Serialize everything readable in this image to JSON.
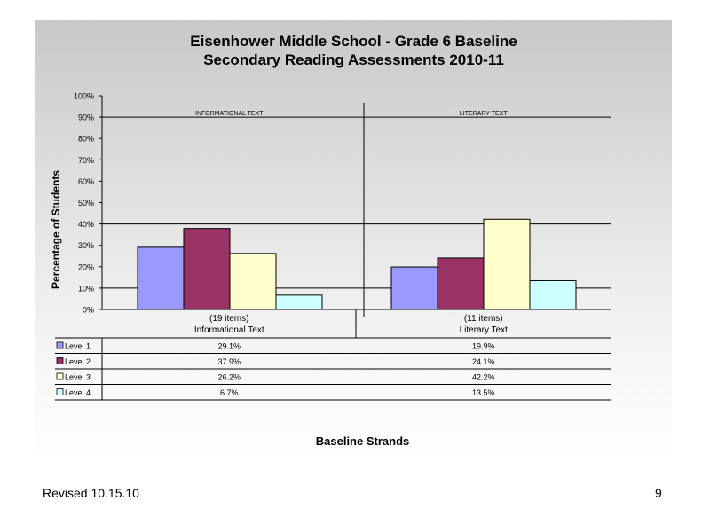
{
  "chart_data": {
    "type": "bar",
    "title": "Eisenhower Middle School  - Grade 6 Baseline",
    "subtitle": "Secondary Reading Assessments 2010-11",
    "xlabel": "Baseline Strands",
    "ylabel": "Percentage of Students",
    "ylim": [
      0,
      100
    ],
    "yticks": [
      "0%",
      "10%",
      "20%",
      "30%",
      "40%",
      "50%",
      "60%",
      "70%",
      "80%",
      "90%",
      "100%"
    ],
    "grid": "horizontal at 10%, 40%, 90%",
    "legend_placement": "data table left",
    "categories": [
      {
        "items": "(19 items)",
        "name": "Informational Text",
        "header": "INFORMATIONAL TEXT"
      },
      {
        "items": "(11 items)",
        "name": "Literary Text",
        "header": "LITERARY TEXT"
      }
    ],
    "series": [
      {
        "name": "Level 1",
        "color": "#9999ff",
        "values": [
          29.1,
          19.9
        ],
        "labels": [
          "29.1%",
          "19.9%"
        ]
      },
      {
        "name": "Level 2",
        "color": "#993366",
        "values": [
          37.9,
          24.1
        ],
        "labels": [
          "37.9%",
          "24.1%"
        ]
      },
      {
        "name": "Level 3",
        "color": "#ffffcc",
        "values": [
          26.2,
          42.2
        ],
        "labels": [
          "26.2%",
          "42.2%"
        ]
      },
      {
        "name": "Level 4",
        "color": "#ccffff",
        "values": [
          6.7,
          13.5
        ],
        "labels": [
          "6.7%",
          "13.5%"
        ]
      }
    ]
  },
  "footer": {
    "revised": "Revised  10.15.10",
    "page_number": "9"
  }
}
